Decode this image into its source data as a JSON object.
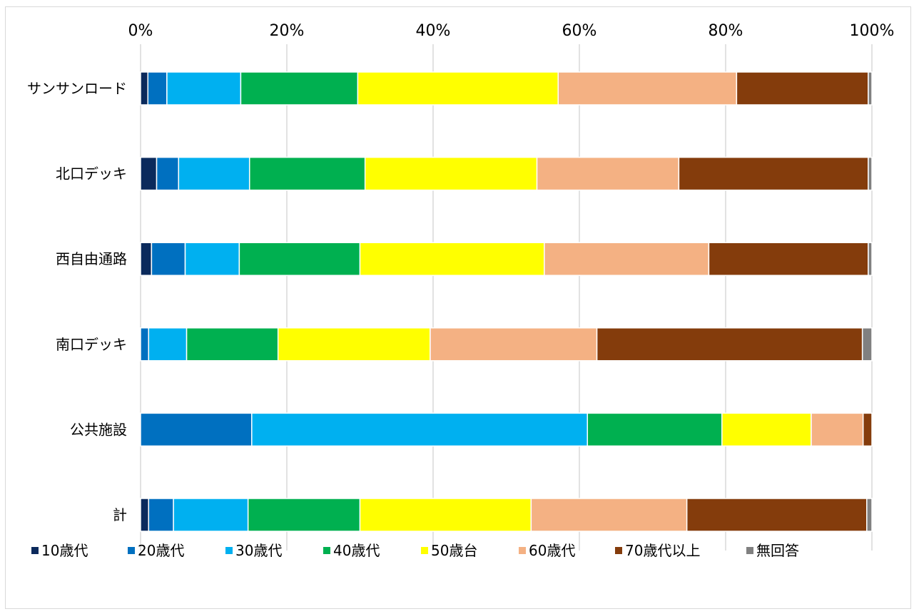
{
  "chart_data": {
    "type": "bar",
    "orientation": "horizontal",
    "stacked": "percent",
    "xlim": [
      0,
      100
    ],
    "x_tick_labels": [
      "0%",
      "20%",
      "40%",
      "60%",
      "80%",
      "100%"
    ],
    "grid": true,
    "legend_position": "bottom",
    "categories": [
      "サンサンロード",
      "北口デッキ",
      "西自由通路",
      "南口デッキ",
      "公共施設",
      "計"
    ],
    "series": [
      {
        "name": "10歳代",
        "color": "#0b2a5c",
        "values": [
          1.0,
          2.2,
          1.5,
          0.0,
          0.0,
          1.1
        ]
      },
      {
        "name": "20歳代",
        "color": "#0070c0",
        "values": [
          2.6,
          3.0,
          4.6,
          1.1,
          15.2,
          3.4
        ]
      },
      {
        "name": "30歳代",
        "color": "#00b0f0",
        "values": [
          10.1,
          9.7,
          7.4,
          5.2,
          45.9,
          10.2
        ]
      },
      {
        "name": "40歳代",
        "color": "#00b050",
        "values": [
          16.0,
          15.8,
          16.5,
          12.5,
          18.4,
          15.3
        ]
      },
      {
        "name": "50歳台",
        "color": "#ffff00",
        "values": [
          27.4,
          23.5,
          25.2,
          20.8,
          12.2,
          23.4
        ]
      },
      {
        "name": "60歳代",
        "color": "#f4b183",
        "values": [
          24.4,
          19.4,
          22.5,
          22.8,
          7.1,
          21.3
        ]
      },
      {
        "name": "70歳代以上",
        "color": "#843c0c",
        "values": [
          18.0,
          25.9,
          21.8,
          36.3,
          1.2,
          24.6
        ]
      },
      {
        "name": "無回答",
        "color": "#808080",
        "values": [
          0.5,
          0.5,
          0.5,
          1.3,
          0.0,
          0.7
        ]
      }
    ]
  }
}
